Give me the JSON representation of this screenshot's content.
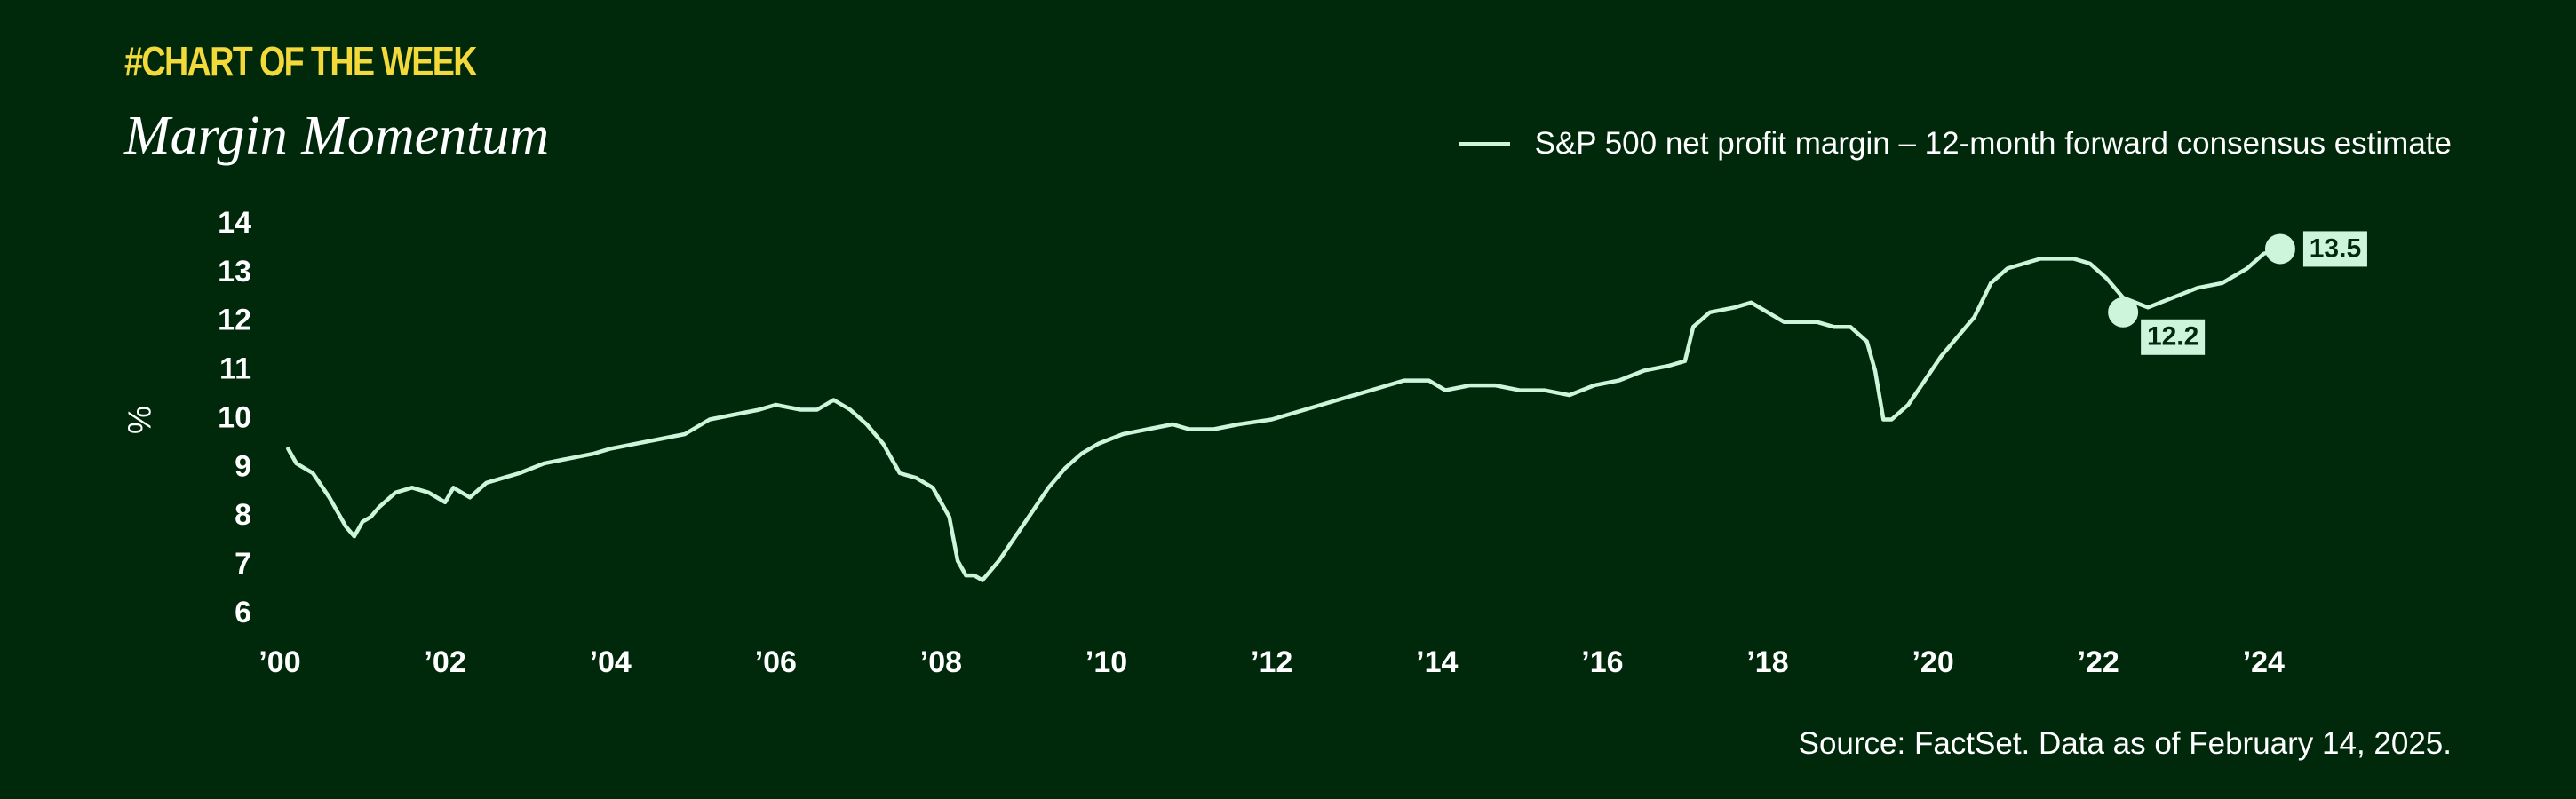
{
  "header": {
    "kicker": "#CHART OF THE WEEK",
    "title": "Margin Momentum"
  },
  "colors": {
    "background": "#00290c",
    "line": "#cdf5dc",
    "kicker": "#f3d93a",
    "text": "#ffffff",
    "label_box": "#cdf5dc",
    "label_text": "#00290c"
  },
  "source": "Source: FactSet. Data as of February 14, 2025.",
  "chart_data": {
    "type": "line",
    "title": "Margin Momentum",
    "xlabel": "",
    "ylabel": "%",
    "xlim": [
      2000,
      2025.2
    ],
    "ylim": [
      6,
      14
    ],
    "grid": false,
    "legend_position": "top-right",
    "x_ticks": [
      {
        "value": 2000,
        "label": "’00"
      },
      {
        "value": 2002,
        "label": "’02"
      },
      {
        "value": 2004,
        "label": "’04"
      },
      {
        "value": 2006,
        "label": "’06"
      },
      {
        "value": 2008,
        "label": "’08"
      },
      {
        "value": 2010,
        "label": "’10"
      },
      {
        "value": 2012,
        "label": "’12"
      },
      {
        "value": 2014,
        "label": "’14"
      },
      {
        "value": 2016,
        "label": "’16"
      },
      {
        "value": 2018,
        "label": "’18"
      },
      {
        "value": 2020,
        "label": "’20"
      },
      {
        "value": 2022,
        "label": "’22"
      },
      {
        "value": 2024,
        "label": "’24"
      }
    ],
    "y_ticks": [
      6,
      7,
      8,
      9,
      10,
      11,
      12,
      13,
      14
    ],
    "series": [
      {
        "name": "S&P 500 net profit margin – 12-month forward consensus estimate",
        "x": [
          2000.1,
          2000.2,
          2000.4,
          2000.6,
          2000.7,
          2000.8,
          2000.9,
          2001.0,
          2001.1,
          2001.2,
          2001.4,
          2001.6,
          2001.8,
          2002.0,
          2002.1,
          2002.3,
          2002.5,
          2002.7,
          2002.9,
          2003.2,
          2003.5,
          2003.8,
          2004.0,
          2004.3,
          2004.6,
          2004.9,
          2005.2,
          2005.5,
          2005.8,
          2006.0,
          2006.3,
          2006.5,
          2006.7,
          2006.9,
          2007.1,
          2007.3,
          2007.5,
          2007.7,
          2007.9,
          2008.0,
          2008.1,
          2008.2,
          2008.3,
          2008.4,
          2008.5,
          2008.7,
          2008.9,
          2009.1,
          2009.3,
          2009.5,
          2009.7,
          2009.9,
          2010.2,
          2010.5,
          2010.8,
          2011.0,
          2011.3,
          2011.6,
          2012.0,
          2012.4,
          2012.8,
          2013.2,
          2013.6,
          2013.9,
          2014.1,
          2014.4,
          2014.7,
          2015.0,
          2015.3,
          2015.6,
          2015.9,
          2016.2,
          2016.5,
          2016.8,
          2017.0,
          2017.1,
          2017.3,
          2017.6,
          2017.8,
          2018.0,
          2018.2,
          2018.4,
          2018.6,
          2018.8,
          2019.0,
          2019.2,
          2019.3,
          2019.4,
          2019.5,
          2019.7,
          2019.9,
          2020.1,
          2020.3,
          2020.5,
          2020.7,
          2020.9,
          2021.1,
          2021.3,
          2021.5,
          2021.7,
          2021.9,
          2022.1,
          2022.3,
          2022.6,
          2022.9,
          2023.2,
          2023.5,
          2023.8,
          2024.0,
          2024.2
        ],
        "values": [
          9.4,
          9.1,
          8.9,
          8.4,
          8.1,
          7.8,
          7.6,
          7.9,
          8.0,
          8.2,
          8.5,
          8.6,
          8.5,
          8.3,
          8.6,
          8.4,
          8.7,
          8.8,
          8.9,
          9.1,
          9.2,
          9.3,
          9.4,
          9.5,
          9.6,
          9.7,
          10.0,
          10.1,
          10.2,
          10.3,
          10.2,
          10.2,
          10.4,
          10.2,
          9.9,
          9.5,
          8.9,
          8.8,
          8.6,
          8.3,
          8.0,
          7.1,
          6.8,
          6.8,
          6.7,
          7.1,
          7.6,
          8.1,
          8.6,
          9.0,
          9.3,
          9.5,
          9.7,
          9.8,
          9.9,
          9.8,
          9.8,
          9.9,
          10.0,
          10.2,
          10.4,
          10.6,
          10.8,
          10.8,
          10.6,
          10.7,
          10.7,
          10.6,
          10.6,
          10.5,
          10.7,
          10.8,
          11.0,
          11.1,
          11.2,
          11.9,
          12.2,
          12.3,
          12.4,
          12.2,
          12.0,
          12.0,
          12.0,
          11.9,
          11.9,
          11.6,
          11.0,
          10.0,
          10.0,
          10.3,
          10.8,
          11.3,
          11.7,
          12.1,
          12.8,
          13.1,
          13.2,
          13.3,
          13.3,
          13.3,
          13.2,
          12.9,
          12.5,
          12.3,
          12.5,
          12.7,
          12.8,
          13.1,
          13.4,
          13.5
        ]
      }
    ],
    "annotations": [
      {
        "x": 2022.3,
        "y": 12.2,
        "label": "12.2"
      },
      {
        "x": 2024.2,
        "y": 13.5,
        "label": "13.5"
      }
    ]
  }
}
